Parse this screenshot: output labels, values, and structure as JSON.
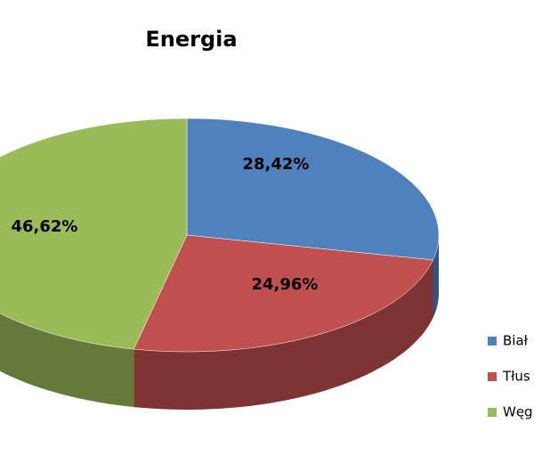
{
  "chart_data": {
    "type": "pie3d",
    "title": "Energia",
    "categories": [
      "Biał",
      "Tłus",
      "Węg"
    ],
    "values": [
      28.42,
      24.96,
      46.62
    ],
    "value_labels": [
      "28,42%",
      "24,96%",
      "46,62%"
    ],
    "colors": [
      "#4f81bd",
      "#c0504d",
      "#9bbb59"
    ],
    "legend": "right"
  }
}
